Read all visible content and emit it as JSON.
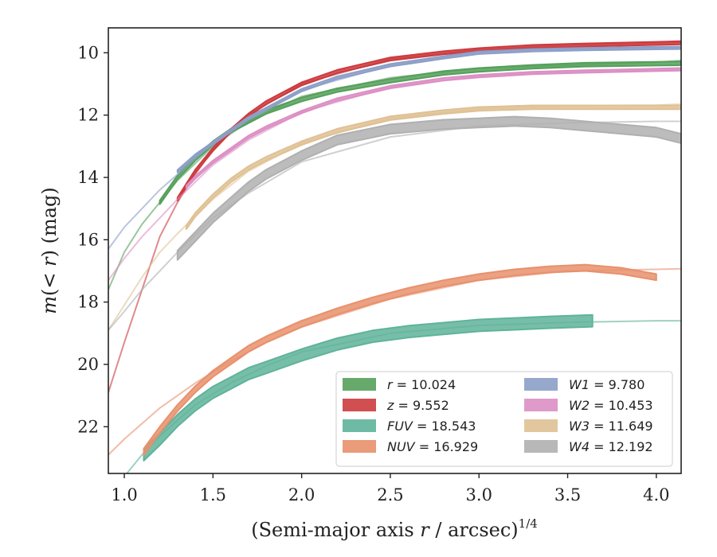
{
  "chart_data": {
    "type": "line",
    "xlabel": "(Semi-major axis r / arcsec)",
    "xlabel_parts": {
      "prefix": "(Semi-major axis ",
      "var": "r",
      "suffix": " / arcsec)",
      "exponent": "1/4"
    },
    "ylabel": "m(< r) (mag)",
    "ylabel_parts": {
      "m": "m",
      "open": "(",
      "lt": "< ",
      "r": "r",
      "close": ")",
      "unit": " (mag)"
    },
    "xlim": [
      0.91,
      4.14
    ],
    "ylim": [
      23.5,
      9.2
    ],
    "y_inverted": true,
    "xticks": [
      "1.0",
      "1.5",
      "2.0",
      "2.5",
      "3.0",
      "3.5",
      "4.0"
    ],
    "xtick_values": [
      1.0,
      1.5,
      2.0,
      2.5,
      3.0,
      3.5,
      4.0
    ],
    "yticks": [
      "10",
      "12",
      "14",
      "16",
      "18",
      "20",
      "22"
    ],
    "ytick_values": [
      10,
      12,
      14,
      16,
      18,
      20,
      22
    ],
    "grid": false,
    "legend_position": "lower-right",
    "legend_columns": 2,
    "series": [
      {
        "id": "r",
        "var": "r",
        "value": "10.024",
        "color": "#55a05a",
        "band": {
          "x": [
            1.2,
            1.3,
            1.4,
            1.5,
            1.6,
            1.7,
            1.8,
            2.0,
            2.2,
            2.5,
            2.8,
            3.0,
            3.3,
            3.6,
            4.0,
            4.14
          ],
          "y": [
            14.8,
            14.0,
            13.4,
            12.9,
            12.5,
            12.2,
            11.9,
            11.5,
            11.2,
            10.9,
            10.65,
            10.55,
            10.45,
            10.38,
            10.35,
            10.34
          ],
          "width": 0.12
        },
        "model": {
          "x": [
            0.91,
            1.0,
            1.1,
            1.2,
            1.3,
            1.5,
            1.7,
            2.0,
            2.5,
            3.0,
            3.5,
            4.0,
            4.14
          ],
          "y": [
            17.6,
            16.4,
            15.5,
            14.8,
            14.1,
            13.0,
            12.2,
            11.4,
            10.8,
            10.5,
            10.4,
            10.3,
            10.25
          ]
        }
      },
      {
        "id": "z",
        "var": "z",
        "value": "9.552",
        "color": "#cc3b3e",
        "band": {
          "x": [
            1.3,
            1.4,
            1.5,
            1.6,
            1.7,
            1.8,
            2.0,
            2.2,
            2.5,
            2.8,
            3.0,
            3.3,
            3.6,
            4.0,
            4.14
          ],
          "y": [
            14.7,
            13.8,
            13.1,
            12.5,
            12.0,
            11.6,
            11.0,
            10.6,
            10.2,
            10.0,
            9.9,
            9.8,
            9.75,
            9.7,
            9.68
          ],
          "width": 0.1
        },
        "model": {
          "x": [
            0.91,
            1.0,
            1.1,
            1.2,
            1.3,
            1.4,
            1.5,
            1.7,
            2.0,
            2.5,
            3.0,
            3.5,
            4.0,
            4.14
          ],
          "y": [
            20.9,
            19.3,
            17.6,
            15.9,
            14.8,
            13.9,
            13.1,
            12.0,
            11.0,
            10.2,
            9.9,
            9.75,
            9.68,
            9.66
          ]
        }
      },
      {
        "id": "FUV",
        "var": "FUV",
        "value": "18.543",
        "color": "#5fb39a",
        "band": {
          "x": [
            1.11,
            1.2,
            1.3,
            1.4,
            1.5,
            1.6,
            1.7,
            1.8,
            2.0,
            2.2,
            2.4,
            2.6,
            2.8,
            3.0,
            3.2,
            3.4,
            3.64
          ],
          "y": [
            22.9,
            22.4,
            21.8,
            21.3,
            20.9,
            20.6,
            20.3,
            20.1,
            19.7,
            19.35,
            19.1,
            18.95,
            18.85,
            18.75,
            18.7,
            18.65,
            18.6
          ],
          "width": 0.38
        },
        "model": {
          "x": [
            0.91,
            1.0,
            1.1,
            1.2,
            1.4,
            1.6,
            1.8,
            2.0,
            2.5,
            3.0,
            3.5,
            4.0,
            4.14
          ],
          "y": [
            24.2,
            23.6,
            22.9,
            22.3,
            21.3,
            20.6,
            20.05,
            19.6,
            19.0,
            18.75,
            18.65,
            18.6,
            18.6
          ]
        }
      },
      {
        "id": "NUV",
        "var": "NUV",
        "value": "16.929",
        "color": "#e8906c",
        "band": {
          "x": [
            1.11,
            1.2,
            1.3,
            1.4,
            1.5,
            1.6,
            1.7,
            1.8,
            2.0,
            2.2,
            2.4,
            2.6,
            2.8,
            3.0,
            3.2,
            3.4,
            3.6,
            3.8,
            4.0
          ],
          "y": [
            22.8,
            22.1,
            21.4,
            20.8,
            20.3,
            19.9,
            19.5,
            19.2,
            18.7,
            18.3,
            17.95,
            17.65,
            17.4,
            17.2,
            17.05,
            16.95,
            16.9,
            17.0,
            17.2
          ],
          "width": 0.2
        },
        "model": {
          "x": [
            0.91,
            1.0,
            1.1,
            1.2,
            1.4,
            1.6,
            1.8,
            2.0,
            2.5,
            3.0,
            3.5,
            4.0,
            4.14
          ],
          "y": [
            22.9,
            22.4,
            21.9,
            21.4,
            20.6,
            19.9,
            19.3,
            18.8,
            17.9,
            17.3,
            17.0,
            16.95,
            16.93
          ]
        }
      },
      {
        "id": "W1",
        "var": "W1",
        "value": "9.780",
        "color": "#8c9fc8",
        "band": {
          "x": [
            1.3,
            1.4,
            1.5,
            1.6,
            1.7,
            1.8,
            2.0,
            2.2,
            2.5,
            2.8,
            3.0,
            3.3,
            3.6,
            4.0,
            4.14
          ],
          "y": [
            13.8,
            13.3,
            12.9,
            12.5,
            12.1,
            11.8,
            11.2,
            10.8,
            10.4,
            10.15,
            10.0,
            9.92,
            9.88,
            9.85,
            9.84
          ],
          "width": 0.08
        },
        "model": {
          "x": [
            0.91,
            1.0,
            1.1,
            1.2,
            1.3,
            1.5,
            1.7,
            2.0,
            2.5,
            3.0,
            3.5,
            4.0,
            4.14
          ],
          "y": [
            16.3,
            15.6,
            15.0,
            14.4,
            13.9,
            12.9,
            12.1,
            11.2,
            10.4,
            10.0,
            9.9,
            9.85,
            9.84
          ]
        }
      },
      {
        "id": "W2",
        "var": "W2",
        "value": "10.453",
        "color": "#dc8fc4",
        "band": {
          "x": [
            1.35,
            1.4,
            1.5,
            1.6,
            1.7,
            1.8,
            2.0,
            2.2,
            2.5,
            2.8,
            3.0,
            3.3,
            3.6,
            4.0,
            4.14
          ],
          "y": [
            14.3,
            14.0,
            13.5,
            13.1,
            12.7,
            12.4,
            11.9,
            11.5,
            11.1,
            10.85,
            10.75,
            10.65,
            10.6,
            10.55,
            10.53
          ],
          "width": 0.08
        },
        "model": {
          "x": [
            0.91,
            1.0,
            1.1,
            1.2,
            1.3,
            1.5,
            1.7,
            2.0,
            2.5,
            3.0,
            3.5,
            4.0,
            4.14
          ],
          "y": [
            17.3,
            16.6,
            15.9,
            15.3,
            14.7,
            13.6,
            12.8,
            11.9,
            11.1,
            10.75,
            10.6,
            10.55,
            10.53
          ]
        }
      },
      {
        "id": "W3",
        "var": "W3",
        "value": "11.649",
        "color": "#dfc194",
        "band": {
          "x": [
            1.35,
            1.4,
            1.5,
            1.6,
            1.7,
            1.8,
            2.0,
            2.2,
            2.5,
            2.8,
            3.0,
            3.3,
            3.6,
            4.0,
            4.14
          ],
          "y": [
            15.6,
            15.2,
            14.6,
            14.1,
            13.7,
            13.4,
            12.9,
            12.5,
            12.1,
            11.9,
            11.8,
            11.75,
            11.75,
            11.75,
            11.75
          ],
          "width": 0.12
        },
        "model": {
          "x": [
            0.91,
            1.0,
            1.1,
            1.2,
            1.3,
            1.5,
            1.7,
            2.0,
            2.5,
            3.0,
            3.5,
            4.0,
            4.14
          ],
          "y": [
            18.9,
            18.1,
            17.2,
            16.4,
            15.8,
            14.7,
            13.8,
            12.9,
            12.1,
            11.8,
            11.7,
            11.68,
            11.65
          ]
        }
      },
      {
        "id": "W4",
        "var": "W4",
        "value": "12.192",
        "color": "#b0b0b0",
        "band": {
          "x": [
            1.3,
            1.4,
            1.5,
            1.6,
            1.7,
            1.8,
            2.0,
            2.2,
            2.5,
            2.8,
            3.0,
            3.2,
            3.4,
            3.6,
            3.8,
            4.0,
            4.14
          ],
          "y": [
            16.5,
            15.9,
            15.3,
            14.8,
            14.3,
            13.9,
            13.3,
            12.8,
            12.45,
            12.3,
            12.25,
            12.2,
            12.25,
            12.35,
            12.45,
            12.55,
            12.75
          ],
          "width": 0.3
        },
        "model": {
          "x": [
            0.91,
            1.0,
            1.1,
            1.2,
            1.3,
            1.5,
            1.7,
            2.0,
            2.5,
            3.0,
            3.5,
            4.0,
            4.14
          ],
          "y": [
            18.9,
            18.3,
            17.6,
            17.0,
            16.4,
            15.3,
            14.5,
            13.5,
            12.7,
            12.35,
            12.25,
            12.2,
            12.2
          ]
        }
      }
    ]
  }
}
